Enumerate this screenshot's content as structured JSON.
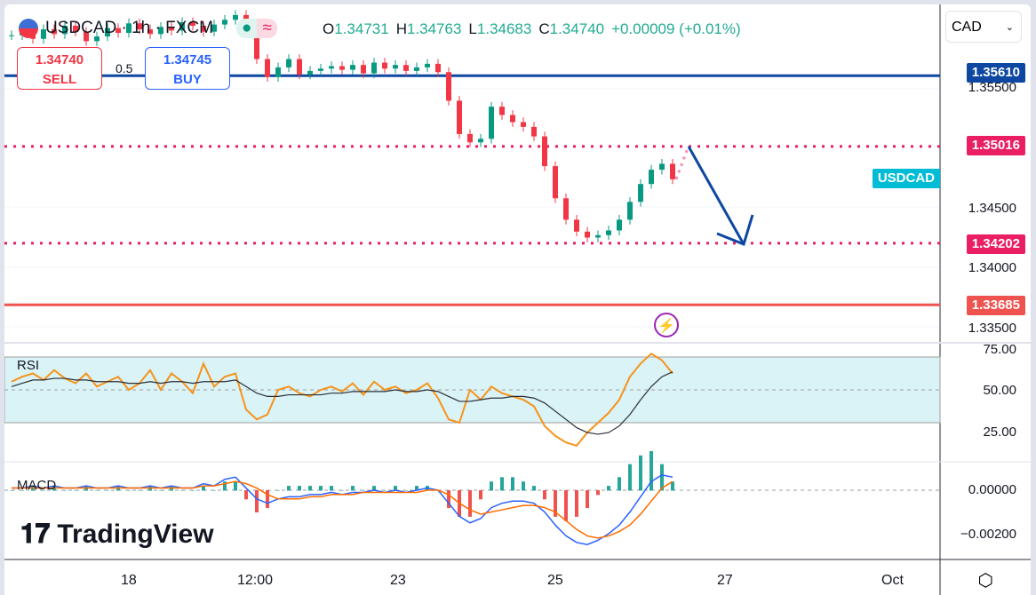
{
  "symbol": {
    "name": "USDCAD",
    "interval": "1h",
    "exchange": "FXCM",
    "title": "USDCAD · 1h · FXCM"
  },
  "ohlc": {
    "o_label": "O",
    "o": "1.34731",
    "h_label": "H",
    "h": "1.34763",
    "l_label": "L",
    "l": "1.34683",
    "c_label": "C",
    "c": "1.34740",
    "change": "+0.00009 (+0.01%)"
  },
  "trade": {
    "sell_price": "1.34740",
    "sell_label": "SELL",
    "buy_price": "1.34745",
    "buy_label": "BUY",
    "spread": "0.5"
  },
  "currency_select": "CAD",
  "price_tags": [
    {
      "value": "1.35610",
      "color": "#0d47a1"
    },
    {
      "value": "1.35016",
      "color": "#e91e63"
    },
    {
      "value": "1.34202",
      "color": "#e91e63"
    },
    {
      "value": "1.33685",
      "color": "#ef5350"
    }
  ],
  "symbol_tag": "USDCAD",
  "price_axis": [
    "1.35500",
    "1.34500",
    "1.34000",
    "1.33500"
  ],
  "rsi": {
    "label": "RSI",
    "axis": [
      "75.00",
      "50.00",
      "25.00"
    ]
  },
  "macd": {
    "label": "MACD",
    "axis": [
      "0.00000",
      "−0.00200"
    ]
  },
  "time_axis": [
    "18",
    "12:00",
    "23",
    "25",
    "27",
    "Oct"
  ],
  "logo_text": "TradingView",
  "colors": {
    "up": "#089981",
    "down": "#f23645",
    "blue": "#0d47a1",
    "pink": "#e91e63",
    "red": "#ef5350"
  },
  "chart_data": {
    "type": "candlestick",
    "closes": [
      1.3595,
      1.3598,
      1.3592,
      1.36,
      1.3596,
      1.3603,
      1.3598,
      1.359,
      1.3594,
      1.3601,
      1.3597,
      1.3605,
      1.36,
      1.3596,
      1.3602,
      1.3599,
      1.3606,
      1.3603,
      1.3598,
      1.3604,
      1.3608,
      1.3612,
      1.3605,
      1.3575,
      1.356,
      1.3568,
      1.3575,
      1.3562,
      1.3565,
      1.3567,
      1.3569,
      1.3566,
      1.357,
      1.3563,
      1.3572,
      1.3567,
      1.357,
      1.3565,
      1.3568,
      1.3571,
      1.3564,
      1.354,
      1.3512,
      1.3505,
      1.3508,
      1.3535,
      1.3528,
      1.3522,
      1.3518,
      1.351,
      1.3485,
      1.3458,
      1.344,
      1.343,
      1.3425,
      1.3427,
      1.3431,
      1.344,
      1.3455,
      1.347,
      1.3482,
      1.3487,
      1.3474
    ],
    "rsi": [
      55,
      58,
      60,
      56,
      62,
      57,
      54,
      60,
      52,
      55,
      58,
      50,
      54,
      62,
      50,
      60,
      55,
      48,
      66,
      52,
      58,
      60,
      38,
      32,
      35,
      50,
      52,
      48,
      46,
      50,
      52,
      49,
      54,
      47,
      55,
      50,
      52,
      48,
      50,
      54,
      45,
      32,
      30,
      50,
      44,
      52,
      48,
      46,
      44,
      40,
      28,
      22,
      18,
      16,
      24,
      30,
      36,
      44,
      58,
      66,
      72,
      68,
      60
    ],
    "rsi_ma": [
      52,
      54,
      56,
      56,
      57,
      57,
      56,
      56,
      55,
      55,
      55,
      54,
      54,
      55,
      54,
      55,
      55,
      54,
      55,
      55,
      55,
      56,
      52,
      48,
      46,
      46,
      47,
      47,
      47,
      47,
      48,
      48,
      49,
      49,
      49,
      49,
      50,
      49,
      49,
      50,
      49,
      46,
      43,
      43,
      44,
      45,
      45,
      46,
      46,
      45,
      42,
      37,
      32,
      27,
      24,
      23,
      24,
      28,
      35,
      44,
      52,
      58,
      61
    ],
    "macd": [
      0.0001,
      0.0001,
      0.0002,
      0.0001,
      0.0002,
      0.0001,
      0.0001,
      0.0002,
      0.0001,
      0.0001,
      0.0002,
      0.0001,
      0.0001,
      0.0002,
      0.0001,
      0.0002,
      0.0001,
      0.0001,
      0.0003,
      0.0002,
      0.0005,
      0.0006,
      0.0001,
      -0.0004,
      -0.0006,
      -0.0004,
      -0.0003,
      -0.0003,
      -0.0002,
      -0.0002,
      -0.0001,
      -0.0002,
      -0.0001,
      -0.0001,
      0,
      -0.0001,
      0,
      -0.0001,
      0,
      0.0001,
      0,
      -0.0006,
      -0.0012,
      -0.0015,
      -0.0013,
      -0.0008,
      -0.0006,
      -0.0005,
      -0.0005,
      -0.0006,
      -0.001,
      -0.0016,
      -0.0021,
      -0.0024,
      -0.0025,
      -0.0023,
      -0.002,
      -0.0016,
      -0.001,
      -0.0003,
      0.0004,
      0.0007,
      0.0006
    ],
    "signal": [
      0.0001,
      0.0001,
      0.0001,
      0.0001,
      0.0001,
      0.0001,
      0.0001,
      0.0001,
      0.0001,
      0.0001,
      0.0001,
      0.0001,
      0.0001,
      0.0001,
      0.0001,
      0.0001,
      0.0001,
      0.0001,
      0.0002,
      0.0002,
      0.0003,
      0.0004,
      0.0003,
      0.0001,
      -0.0002,
      -0.0004,
      -0.0004,
      -0.0004,
      -0.0003,
      -0.0003,
      -0.0002,
      -0.0002,
      -0.0002,
      -0.0001,
      -0.0001,
      -0.0001,
      -0.0001,
      -0.0001,
      -0.0001,
      0,
      0,
      -0.0002,
      -0.0006,
      -0.0009,
      -0.0011,
      -0.001,
      -0.0009,
      -0.0008,
      -0.0007,
      -0.0007,
      -0.0008,
      -0.001,
      -0.0014,
      -0.0018,
      -0.0021,
      -0.0022,
      -0.0021,
      -0.0019,
      -0.0016,
      -0.0011,
      -0.0005,
      0.0001,
      0.0004
    ]
  }
}
